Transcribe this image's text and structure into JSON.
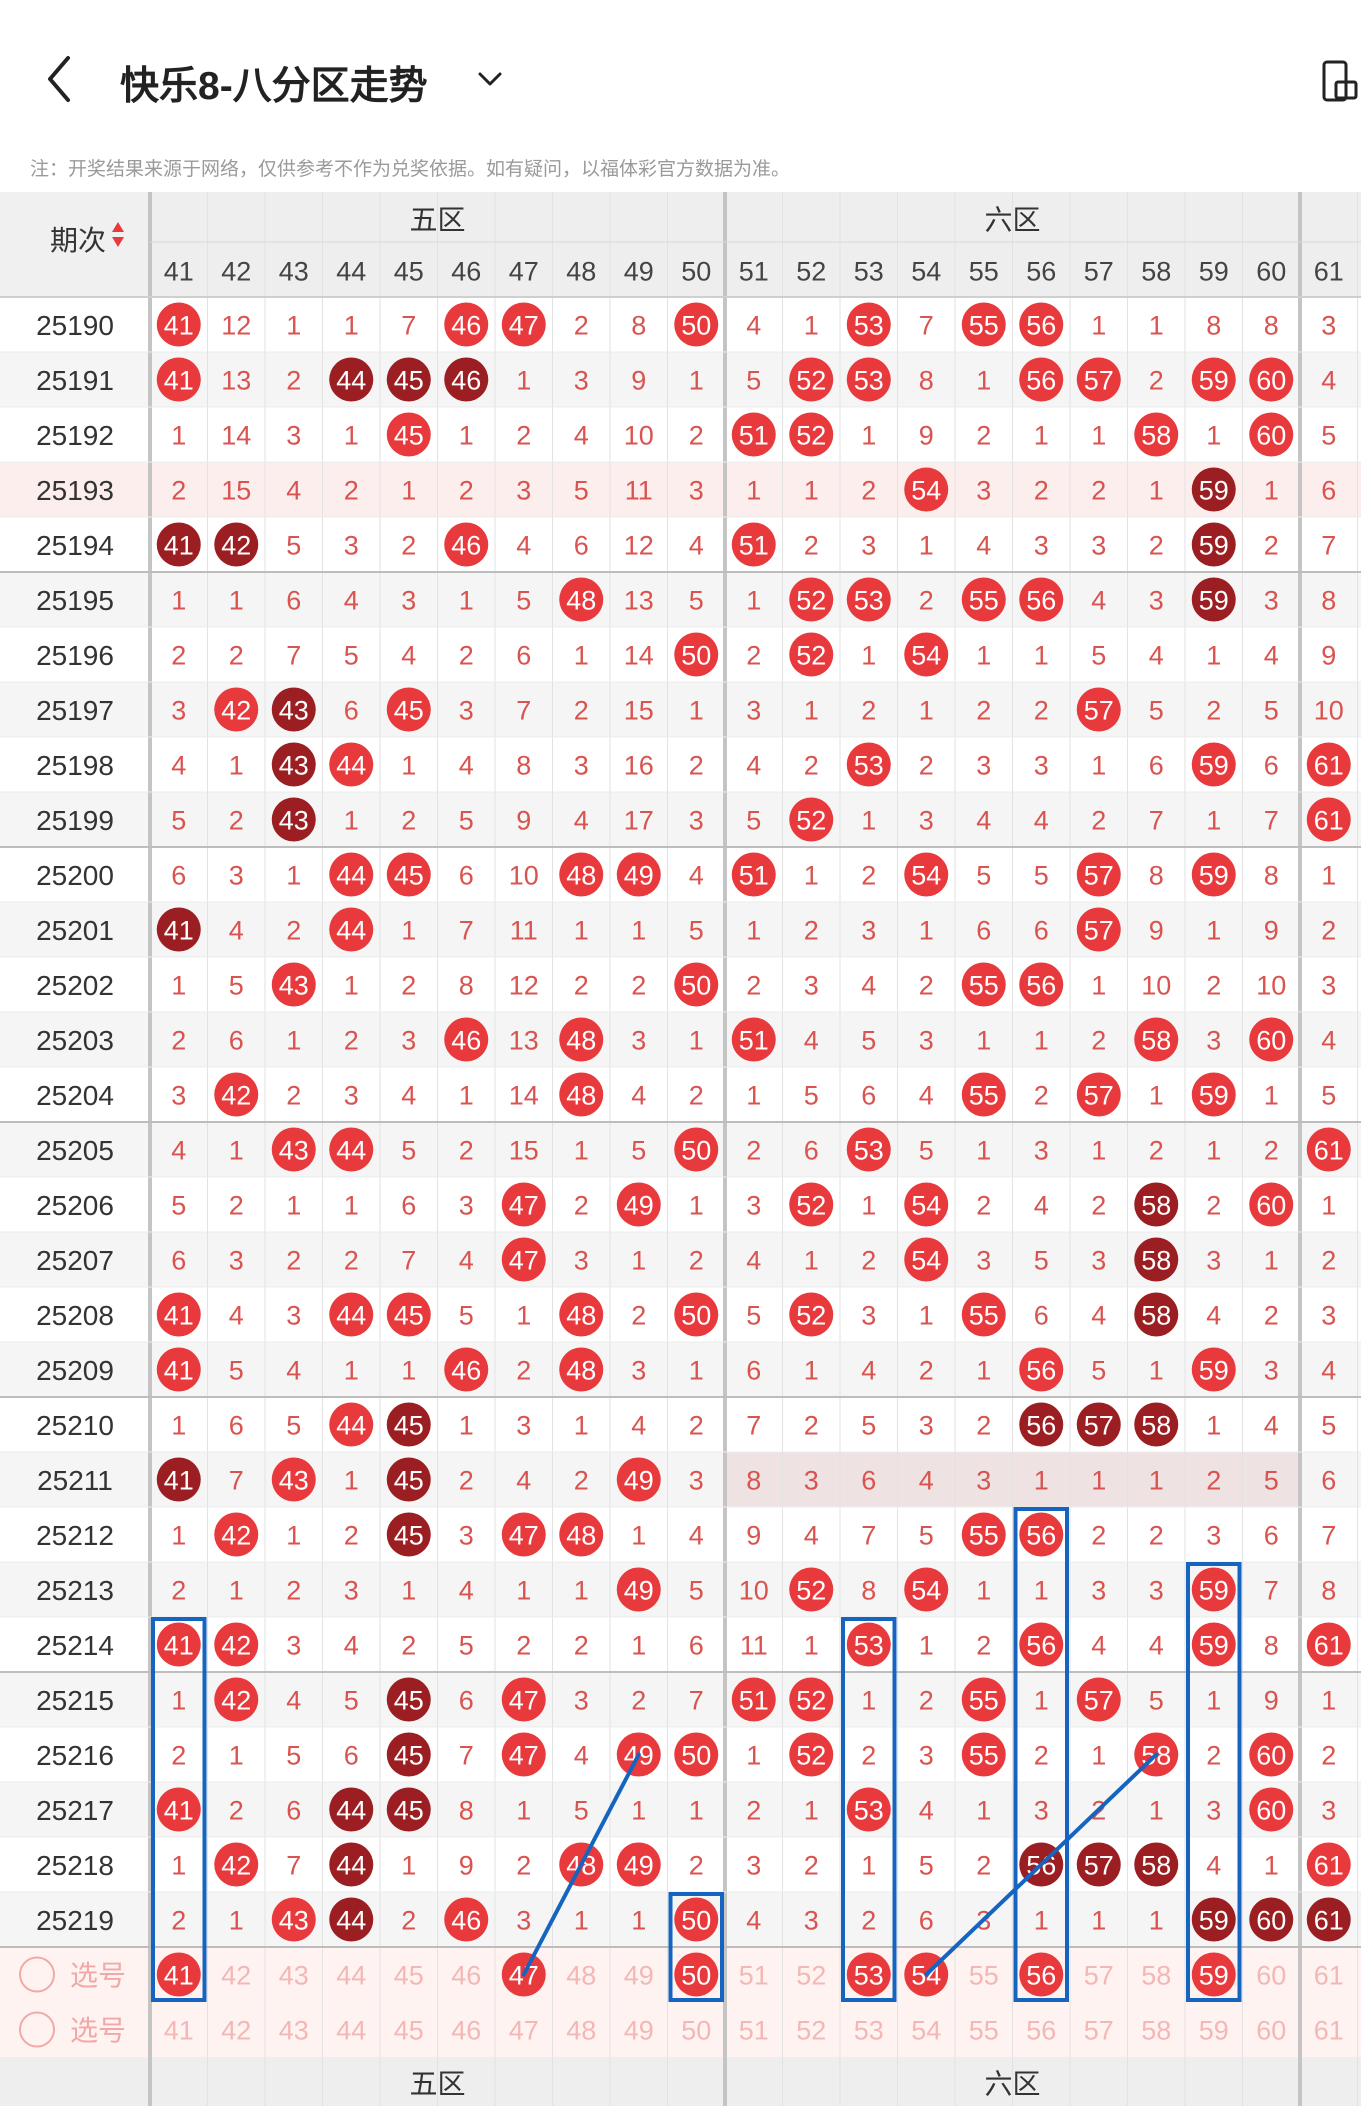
{
  "status_bar": {
    "time": ""
  },
  "header": {
    "title": "快乐8-八分区走势",
    "note": "注：开奖结果来源于网络，仅供参考不作为兑奖依据。如有疑问，以福体彩官方数据为准。"
  },
  "table": {
    "period_label": "期次",
    "zones": [
      {
        "label": "五区",
        "from": 41,
        "to": 50
      },
      {
        "label": "六区",
        "from": 51,
        "to": 60
      },
      {
        "label": "",
        "from": 61,
        "to": 61
      }
    ],
    "columns": [
      41,
      42,
      43,
      44,
      45,
      46,
      47,
      48,
      49,
      50,
      51,
      52,
      53,
      54,
      55,
      56,
      57,
      58,
      59,
      60,
      61
    ],
    "rows": [
      {
        "p": "25190",
        "v": [
          41,
          12,
          1,
          1,
          7,
          46,
          47,
          2,
          8,
          50,
          4,
          1,
          53,
          7,
          55,
          56,
          1,
          1,
          8,
          8,
          3
        ],
        "dark": []
      },
      {
        "p": "25191",
        "v": [
          41,
          13,
          2,
          44,
          45,
          46,
          1,
          3,
          9,
          1,
          5,
          52,
          53,
          8,
          1,
          56,
          57,
          2,
          59,
          60,
          4
        ],
        "dark": [
          44,
          45,
          46
        ]
      },
      {
        "p": "25192",
        "v": [
          1,
          14,
          3,
          1,
          45,
          1,
          2,
          4,
          10,
          2,
          51,
          52,
          1,
          9,
          2,
          1,
          1,
          58,
          1,
          60,
          5
        ],
        "dark": []
      },
      {
        "p": "25193",
        "v": [
          2,
          15,
          4,
          2,
          1,
          2,
          3,
          5,
          11,
          3,
          1,
          1,
          2,
          54,
          3,
          2,
          2,
          1,
          59,
          1,
          6
        ],
        "dark": [
          59
        ]
      },
      {
        "p": "25194",
        "v": [
          41,
          42,
          5,
          3,
          2,
          46,
          4,
          6,
          12,
          4,
          51,
          2,
          3,
          1,
          4,
          3,
          3,
          2,
          59,
          2,
          7
        ],
        "dark": [
          41,
          42,
          59
        ]
      },
      {
        "p": "25195",
        "v": [
          1,
          1,
          6,
          4,
          3,
          1,
          5,
          48,
          13,
          5,
          1,
          52,
          53,
          2,
          55,
          56,
          4,
          3,
          59,
          3,
          8
        ],
        "dark": [
          59
        ]
      },
      {
        "p": "25196",
        "v": [
          2,
          2,
          7,
          5,
          4,
          2,
          6,
          1,
          14,
          50,
          2,
          52,
          1,
          54,
          1,
          1,
          5,
          4,
          1,
          4,
          9
        ],
        "dark": []
      },
      {
        "p": "25197",
        "v": [
          3,
          42,
          43,
          6,
          45,
          3,
          7,
          2,
          15,
          1,
          3,
          1,
          2,
          1,
          2,
          2,
          57,
          5,
          2,
          5,
          10
        ],
        "dark": [
          43
        ]
      },
      {
        "p": "25198",
        "v": [
          4,
          1,
          43,
          44,
          1,
          4,
          8,
          3,
          16,
          2,
          4,
          2,
          53,
          2,
          3,
          3,
          1,
          6,
          59,
          6,
          61
        ],
        "dark": [
          43
        ]
      },
      {
        "p": "25199",
        "v": [
          5,
          2,
          43,
          1,
          2,
          5,
          9,
          4,
          17,
          3,
          5,
          52,
          1,
          3,
          4,
          4,
          2,
          7,
          1,
          7,
          61
        ],
        "dark": [
          43
        ]
      },
      {
        "p": "25200",
        "v": [
          6,
          3,
          1,
          44,
          45,
          6,
          10,
          48,
          49,
          4,
          51,
          1,
          2,
          54,
          5,
          5,
          57,
          8,
          59,
          8,
          1
        ],
        "dark": []
      },
      {
        "p": "25201",
        "v": [
          41,
          4,
          2,
          44,
          1,
          7,
          11,
          1,
          1,
          5,
          1,
          2,
          3,
          1,
          6,
          6,
          57,
          9,
          1,
          9,
          2
        ],
        "dark": [
          41
        ]
      },
      {
        "p": "25202",
        "v": [
          1,
          5,
          43,
          1,
          2,
          8,
          12,
          2,
          2,
          50,
          2,
          3,
          4,
          2,
          55,
          56,
          1,
          10,
          2,
          10,
          3
        ],
        "dark": []
      },
      {
        "p": "25203",
        "v": [
          2,
          6,
          1,
          2,
          3,
          46,
          13,
          48,
          3,
          1,
          51,
          4,
          5,
          3,
          1,
          1,
          2,
          58,
          3,
          60,
          4
        ],
        "dark": []
      },
      {
        "p": "25204",
        "v": [
          3,
          42,
          2,
          3,
          4,
          1,
          14,
          48,
          4,
          2,
          1,
          5,
          6,
          4,
          55,
          2,
          57,
          1,
          59,
          1,
          5
        ],
        "dark": []
      },
      {
        "p": "25205",
        "v": [
          4,
          1,
          43,
          44,
          5,
          2,
          15,
          1,
          5,
          50,
          2,
          6,
          53,
          5,
          1,
          3,
          1,
          2,
          1,
          2,
          61
        ],
        "dark": []
      },
      {
        "p": "25206",
        "v": [
          5,
          2,
          1,
          1,
          6,
          3,
          47,
          2,
          49,
          1,
          3,
          52,
          1,
          54,
          2,
          4,
          2,
          58,
          2,
          60,
          1
        ],
        "dark": [
          58
        ]
      },
      {
        "p": "25207",
        "v": [
          6,
          3,
          2,
          2,
          7,
          4,
          47,
          3,
          1,
          2,
          4,
          1,
          2,
          54,
          3,
          5,
          3,
          58,
          3,
          1,
          2
        ],
        "dark": [
          58
        ]
      },
      {
        "p": "25208",
        "v": [
          41,
          4,
          3,
          44,
          45,
          5,
          1,
          48,
          2,
          50,
          5,
          52,
          3,
          1,
          55,
          6,
          4,
          58,
          4,
          2,
          3
        ],
        "dark": [
          58
        ]
      },
      {
        "p": "25209",
        "v": [
          41,
          5,
          4,
          1,
          1,
          46,
          2,
          48,
          3,
          1,
          6,
          1,
          4,
          2,
          1,
          56,
          5,
          1,
          59,
          3,
          4
        ],
        "dark": []
      },
      {
        "p": "25210",
        "v": [
          1,
          6,
          5,
          44,
          45,
          1,
          3,
          1,
          4,
          2,
          7,
          2,
          5,
          3,
          2,
          56,
          57,
          58,
          1,
          4,
          5
        ],
        "dark": [
          45,
          56,
          57,
          58
        ]
      },
      {
        "p": "25211",
        "v": [
          41,
          7,
          43,
          1,
          45,
          2,
          4,
          2,
          49,
          3,
          8,
          3,
          6,
          4,
          3,
          1,
          1,
          1,
          2,
          5,
          6
        ],
        "dark": [
          41,
          45
        ]
      },
      {
        "p": "25212",
        "v": [
          1,
          42,
          1,
          2,
          45,
          3,
          47,
          48,
          1,
          4,
          9,
          4,
          7,
          5,
          55,
          56,
          2,
          2,
          3,
          6,
          7
        ],
        "dark": [
          45
        ]
      },
      {
        "p": "25213",
        "v": [
          2,
          1,
          2,
          3,
          1,
          4,
          1,
          1,
          49,
          5,
          10,
          52,
          8,
          54,
          1,
          1,
          3,
          3,
          59,
          7,
          8
        ],
        "dark": []
      },
      {
        "p": "25214",
        "v": [
          41,
          42,
          3,
          4,
          2,
          5,
          2,
          2,
          1,
          6,
          11,
          1,
          53,
          1,
          2,
          56,
          4,
          4,
          59,
          8,
          61
        ],
        "dark": []
      },
      {
        "p": "25215",
        "v": [
          1,
          42,
          4,
          5,
          45,
          6,
          47,
          3,
          2,
          7,
          51,
          52,
          1,
          2,
          55,
          1,
          57,
          5,
          1,
          9,
          1
        ],
        "dark": [
          45
        ]
      },
      {
        "p": "25216",
        "v": [
          2,
          1,
          5,
          6,
          45,
          7,
          47,
          4,
          49,
          50,
          1,
          52,
          2,
          3,
          55,
          2,
          1,
          58,
          2,
          60,
          2
        ],
        "dark": [
          45
        ]
      },
      {
        "p": "25217",
        "v": [
          41,
          2,
          6,
          44,
          45,
          8,
          1,
          5,
          1,
          1,
          2,
          1,
          53,
          4,
          1,
          3,
          2,
          1,
          3,
          60,
          3
        ],
        "dark": [
          44,
          45
        ]
      },
      {
        "p": "25218",
        "v": [
          1,
          42,
          7,
          44,
          1,
          9,
          2,
          48,
          49,
          2,
          3,
          2,
          1,
          5,
          2,
          56,
          57,
          58,
          4,
          1,
          61
        ],
        "dark": [
          44,
          56,
          57,
          58
        ]
      },
      {
        "p": "25219",
        "v": [
          2,
          1,
          43,
          44,
          2,
          46,
          3,
          1,
          1,
          50,
          4,
          3,
          2,
          6,
          3,
          1,
          1,
          1,
          59,
          60,
          61
        ],
        "dark": [
          44,
          59,
          60,
          61
        ]
      }
    ],
    "pick_rows": [
      {
        "label": "选号",
        "selected": [
          41,
          47,
          50,
          53,
          54,
          56,
          59
        ]
      },
      {
        "label": "选号",
        "selected": []
      }
    ]
  },
  "colors": {
    "hit": "#e8393c",
    "dark": "#9b1f22",
    "miss": "#d9534f",
    "accent": "#1565c0"
  }
}
